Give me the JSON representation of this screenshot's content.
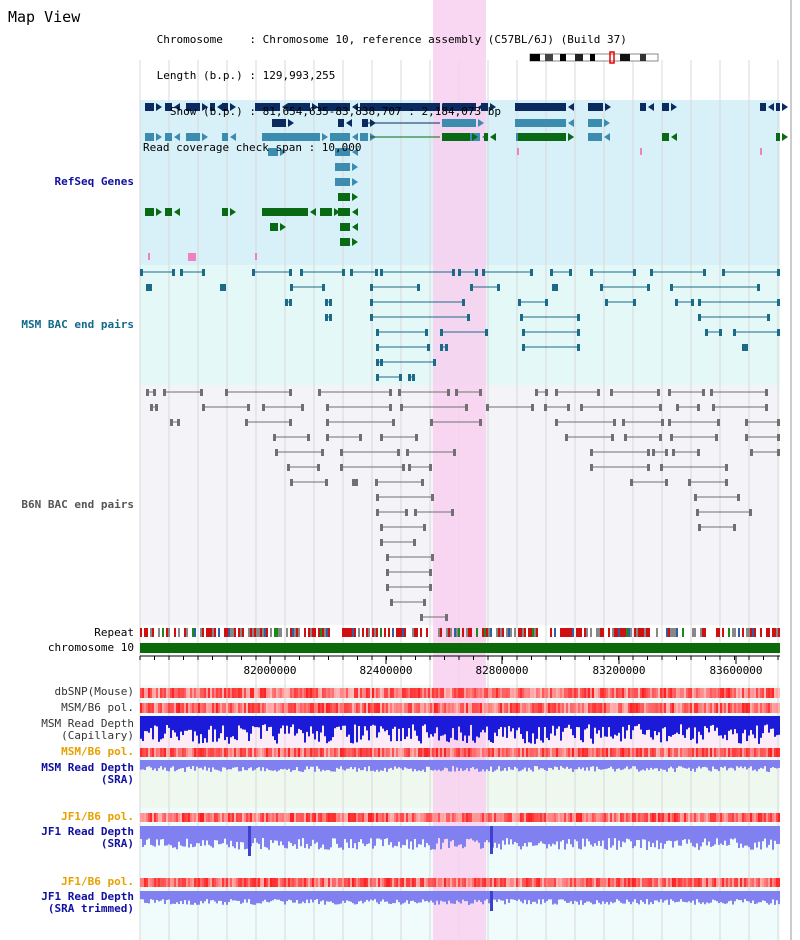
{
  "title": "Map View",
  "info": {
    "chromosome_line": " Chromosome    : Chromosome 10, reference assembly (C57BL/6J) (Build 37)",
    "length_line": " Length (b.p.) : 129,993,255",
    "show_line": "   Show (b.p.) : 81,654,635-83,838,707 : 2,184,073 bp",
    "coverage_line": "Read coverage check span : 10,000"
  },
  "tracks": {
    "refseq": "RefSeq Genes",
    "msm_bac": "MSM BAC end pairs",
    "b6n_bac": "B6N BAC end pairs",
    "repeat": "Repeat",
    "chromosome": "chromosome 10",
    "dbsnp": "dbSNP(Mouse)",
    "msm_pol": "MSM/B6 pol.",
    "msm_depth_cap": "MSM Read Depth\n(Capillary)",
    "msm_pol2": "MSM/B6 pol.",
    "msm_depth_sra": "MSM Read Depth\n(SRA)",
    "jf1_pol": "JF1/B6 pol.",
    "jf1_depth_sra": "JF1 Read Depth\n(SRA)",
    "jf1_pol2": "JF1/B6 pol.",
    "jf1_depth_trim": "JF1 Read Depth\n(SRA trimmed)"
  },
  "axis_ticks": [
    "82000000",
    "82400000",
    "82800000",
    "83200000",
    "83600000"
  ],
  "colors": {
    "highlight": "#f8d0f0",
    "refseq_bg": "#d8f0f8",
    "bac_bg": "#e4f8f8",
    "b6n_bg": "#f4f4f8",
    "gene_dark": "#0a2a60",
    "gene_mid": "#3c8cb0",
    "gene_green": "#0a6a14",
    "chrom_green": "#0a6a0a",
    "depth_blue": "#1a1ad8",
    "depth_light": "#8080f0"
  }
}
